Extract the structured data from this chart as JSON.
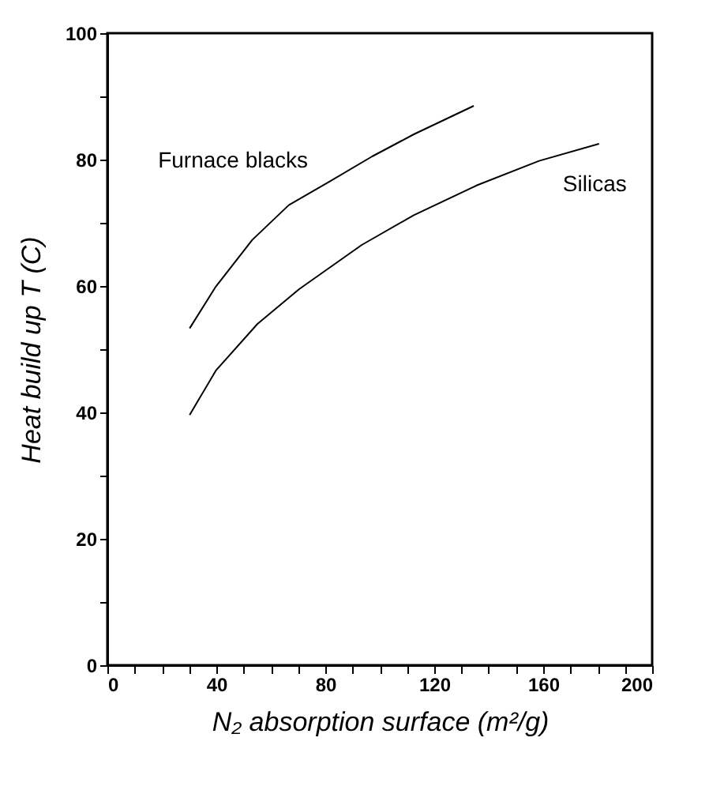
{
  "chart_data": {
    "type": "line",
    "xlabel": "N₂ absorption surface (m²/g)",
    "ylabel": "Heat build up T (C)",
    "series": [
      {
        "name": "Furnace blacks",
        "color": "#000000",
        "x": [
          30.2,
          39.8,
          53.2,
          66.6,
          81.9,
          97.2,
          112.5,
          134.5
        ],
        "values": [
          53.3,
          59.9,
          67.3,
          72.8,
          76.6,
          80.5,
          84.0,
          88.5
        ]
      },
      {
        "name": "Silicas",
        "color": "#000000",
        "x": [
          30.2,
          39.8,
          55.1,
          70.4,
          93.4,
          112.5,
          135.5,
          158.5,
          180.5
        ],
        "values": [
          39.6,
          46.6,
          54.0,
          59.5,
          66.5,
          71.2,
          75.9,
          79.8,
          82.5
        ]
      }
    ],
    "xlim": [
      0,
      200
    ],
    "ylim": [
      0,
      100
    ],
    "xticks": [
      0,
      {
        "value": 10,
        "label": null
      },
      {
        "value": 20,
        "label": null
      },
      {
        "value": 30,
        "label": null
      },
      40,
      {
        "value": 50,
        "label": null
      },
      {
        "value": 60,
        "label": null
      },
      {
        "value": 70,
        "label": null
      },
      80,
      {
        "value": 90,
        "label": null
      },
      {
        "value": 100,
        "label": null
      },
      {
        "value": 110,
        "label": null
      },
      120,
      {
        "value": 130,
        "label": null
      },
      {
        "value": 140,
        "label": null
      },
      {
        "value": 150,
        "label": null
      },
      160,
      {
        "value": 170,
        "label": null
      },
      {
        "value": 180,
        "label": null
      },
      {
        "value": 190,
        "label": null
      },
      200
    ],
    "yticks": [
      0,
      {
        "value": 10,
        "label": null
      },
      20,
      {
        "value": 30,
        "label": null
      },
      40,
      {
        "value": 50,
        "label": null
      },
      60,
      {
        "value": 70,
        "label": null
      },
      80,
      {
        "value": 90,
        "label": null
      },
      100
    ],
    "grid": false,
    "legend": false,
    "marker": "none",
    "line_style": "solid"
  }
}
